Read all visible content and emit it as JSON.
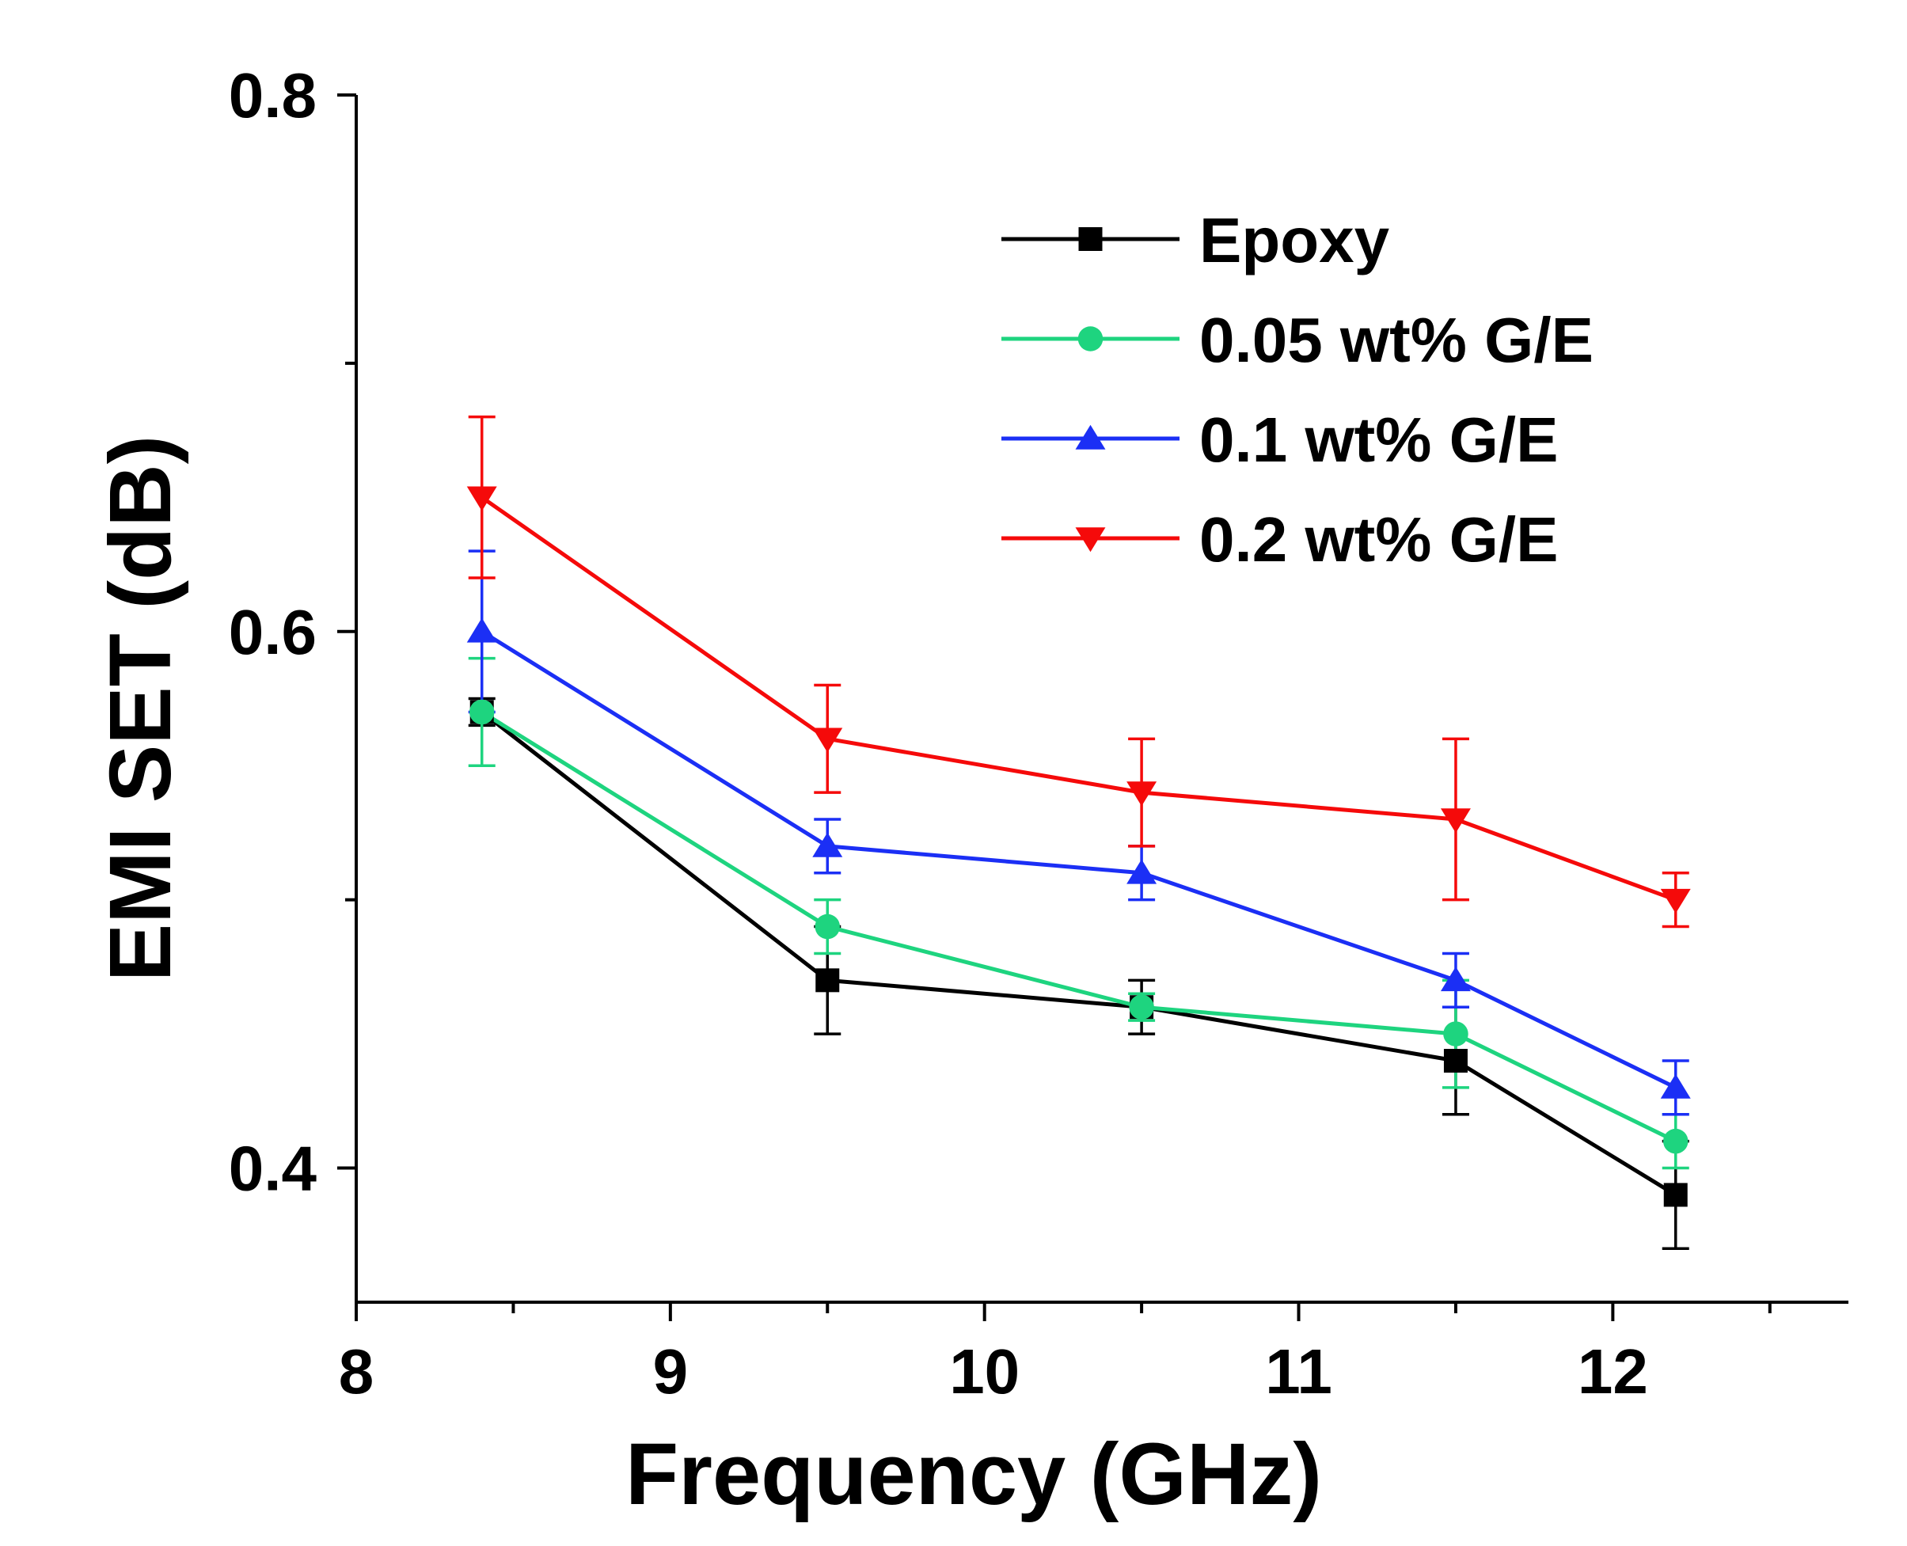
{
  "chart_data": {
    "type": "line",
    "title": "",
    "xlabel": "Frequency (GHz)",
    "ylabel": "EMI SET (dB)",
    "xlim": [
      8,
      12.75
    ],
    "ylim": [
      0.35,
      0.8
    ],
    "x_major_ticks": [
      8,
      9,
      10,
      11,
      12
    ],
    "x_tick_labels": [
      "8",
      "9",
      "10",
      "11",
      "12"
    ],
    "y_major_ticks": [
      0.4,
      0.6,
      0.8
    ],
    "y_tick_labels": [
      "0.4",
      "0.6",
      "0.8"
    ],
    "x": [
      8.4,
      9.5,
      10.5,
      11.5,
      12.2
    ],
    "legend_position": "top-right",
    "grid": false,
    "series": [
      {
        "name": "Epoxy",
        "color": "#000000",
        "marker": "square",
        "values": [
          0.57,
          0.47,
          0.46,
          0.44,
          0.39
        ],
        "errors": [
          0.005,
          0.02,
          0.01,
          0.02,
          0.02
        ]
      },
      {
        "name": "0.05 wt% G/E",
        "color": "#1ed47f",
        "marker": "circle",
        "values": [
          0.57,
          0.49,
          0.46,
          0.45,
          0.41
        ],
        "errors": [
          0.02,
          0.01,
          0.005,
          0.02,
          0.01
        ]
      },
      {
        "name": "0.1 wt% G/E",
        "color": "#1b2ff5",
        "marker": "triangle-up",
        "values": [
          0.6,
          0.52,
          0.51,
          0.47,
          0.43
        ],
        "errors": [
          0.03,
          0.01,
          0.01,
          0.01,
          0.01
        ]
      },
      {
        "name": "0.2 wt% G/E",
        "color": "#f50a0a",
        "marker": "triangle-down",
        "values": [
          0.65,
          0.56,
          0.54,
          0.53,
          0.5
        ],
        "errors": [
          0.03,
          0.02,
          0.02,
          0.03,
          0.01
        ]
      }
    ]
  }
}
